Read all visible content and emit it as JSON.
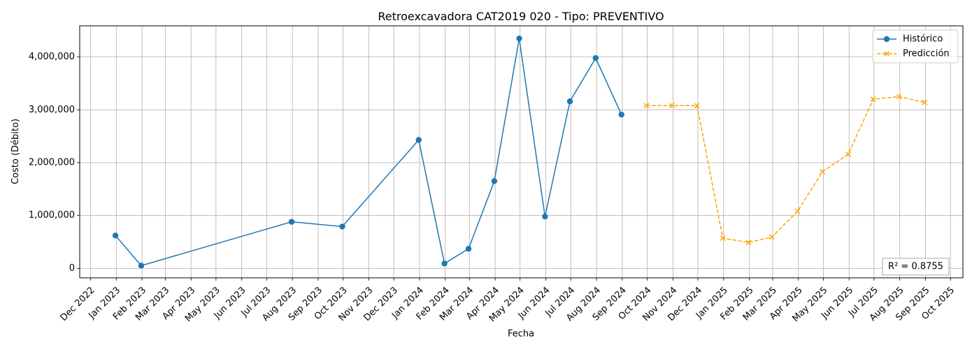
{
  "chart_data": {
    "type": "line",
    "title": "Retroexcavadora CAT2019  020 - Tipo: PREVENTIVO",
    "xlabel": "Fecha",
    "ylabel": "Costo (Débito)",
    "x_type": "date",
    "xlim": [
      "2022-11-18",
      "2025-10-16"
    ],
    "ylim": [
      -180000,
      4590000
    ],
    "x_ticks": [
      {
        "date": "2022-12-01",
        "label": "Dec 2022"
      },
      {
        "date": "2023-01-01",
        "label": "Jan 2023"
      },
      {
        "date": "2023-02-01",
        "label": "Feb 2023"
      },
      {
        "date": "2023-03-01",
        "label": "Mar 2023"
      },
      {
        "date": "2023-04-01",
        "label": "Apr 2023"
      },
      {
        "date": "2023-05-01",
        "label": "May 2023"
      },
      {
        "date": "2023-06-01",
        "label": "Jun 2023"
      },
      {
        "date": "2023-07-01",
        "label": "Jul 2023"
      },
      {
        "date": "2023-08-01",
        "label": "Aug 2023"
      },
      {
        "date": "2023-09-01",
        "label": "Sep 2023"
      },
      {
        "date": "2023-10-01",
        "label": "Oct 2023"
      },
      {
        "date": "2023-11-01",
        "label": "Nov 2023"
      },
      {
        "date": "2023-12-01",
        "label": "Dec 2023"
      },
      {
        "date": "2024-01-01",
        "label": "Jan 2024"
      },
      {
        "date": "2024-02-01",
        "label": "Feb 2024"
      },
      {
        "date": "2024-03-01",
        "label": "Mar 2024"
      },
      {
        "date": "2024-04-01",
        "label": "Apr 2024"
      },
      {
        "date": "2024-05-01",
        "label": "May 2024"
      },
      {
        "date": "2024-06-01",
        "label": "Jun 2024"
      },
      {
        "date": "2024-07-01",
        "label": "Jul 2024"
      },
      {
        "date": "2024-08-01",
        "label": "Aug 2024"
      },
      {
        "date": "2024-09-01",
        "label": "Sep 2024"
      },
      {
        "date": "2024-10-01",
        "label": "Oct 2024"
      },
      {
        "date": "2024-11-01",
        "label": "Nov 2024"
      },
      {
        "date": "2024-12-01",
        "label": "Dec 2024"
      },
      {
        "date": "2025-01-01",
        "label": "Jan 2025"
      },
      {
        "date": "2025-02-01",
        "label": "Feb 2025"
      },
      {
        "date": "2025-03-01",
        "label": "Mar 2025"
      },
      {
        "date": "2025-04-01",
        "label": "Apr 2025"
      },
      {
        "date": "2025-05-01",
        "label": "May 2025"
      },
      {
        "date": "2025-06-01",
        "label": "Jun 2025"
      },
      {
        "date": "2025-07-01",
        "label": "Jul 2025"
      },
      {
        "date": "2025-08-01",
        "label": "Aug 2025"
      },
      {
        "date": "2025-09-01",
        "label": "Sep 2025"
      },
      {
        "date": "2025-10-01",
        "label": "Oct 2025"
      }
    ],
    "y_ticks": [
      {
        "value": 0,
        "label": "0"
      },
      {
        "value": 1000000,
        "label": "1,000,000"
      },
      {
        "value": 2000000,
        "label": "2,000,000"
      },
      {
        "value": 3000000,
        "label": "3,000,000"
      },
      {
        "value": 4000000,
        "label": "4,000,000"
      }
    ],
    "grid": true,
    "legend_position": "top-right",
    "series": [
      {
        "name": "Histórico",
        "color": "#1f77b4",
        "line_style": "solid",
        "marker": "circle",
        "points": [
          {
            "x": "2022-12-31",
            "y": 620000
          },
          {
            "x": "2023-01-31",
            "y": 50000
          },
          {
            "x": "2023-07-31",
            "y": 880000
          },
          {
            "x": "2023-09-30",
            "y": 790000
          },
          {
            "x": "2023-12-31",
            "y": 2430000
          },
          {
            "x": "2024-01-31",
            "y": 90000
          },
          {
            "x": "2024-02-29",
            "y": 370000
          },
          {
            "x": "2024-03-31",
            "y": 1650000
          },
          {
            "x": "2024-04-30",
            "y": 4350000
          },
          {
            "x": "2024-05-31",
            "y": 980000
          },
          {
            "x": "2024-06-30",
            "y": 3160000
          },
          {
            "x": "2024-07-31",
            "y": 3980000
          },
          {
            "x": "2024-08-31",
            "y": 2910000
          }
        ]
      },
      {
        "name": "Predicción",
        "color": "#ffa500",
        "line_style": "dashed",
        "marker": "x",
        "points": [
          {
            "x": "2024-09-30",
            "y": 3080000
          },
          {
            "x": "2024-10-31",
            "y": 3080000
          },
          {
            "x": "2024-11-30",
            "y": 3080000
          },
          {
            "x": "2024-12-31",
            "y": 570000
          },
          {
            "x": "2025-01-31",
            "y": 490000
          },
          {
            "x": "2025-02-28",
            "y": 590000
          },
          {
            "x": "2025-03-31",
            "y": 1080000
          },
          {
            "x": "2025-04-30",
            "y": 1830000
          },
          {
            "x": "2025-05-31",
            "y": 2160000
          },
          {
            "x": "2025-06-30",
            "y": 3200000
          },
          {
            "x": "2025-07-31",
            "y": 3250000
          },
          {
            "x": "2025-08-31",
            "y": 3140000
          }
        ]
      }
    ],
    "annotations": [
      {
        "text": "R² = 0.8755",
        "position": "bottom-right"
      }
    ]
  }
}
